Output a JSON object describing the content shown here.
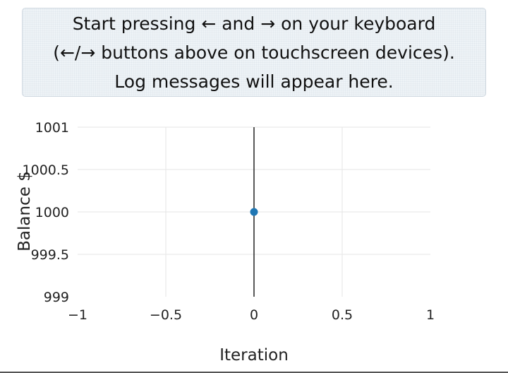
{
  "log": {
    "lines": [
      "Start pressing ← and → on your keyboard",
      "(←/→ buttons above on touchscreen devices).",
      "Log messages will appear here."
    ]
  },
  "chart_data": {
    "type": "scatter",
    "title": "",
    "xlabel": "Iteration",
    "ylabel": "Balance $",
    "xlim": [
      -1,
      1
    ],
    "ylim": [
      999,
      1001
    ],
    "x_ticks": [
      -1,
      -0.5,
      0,
      0.5,
      1
    ],
    "x_tick_labels": [
      "−1",
      "−0.5",
      "0",
      "0.5",
      "1"
    ],
    "y_ticks": [
      999,
      999.5,
      1000,
      1000.5,
      1001
    ],
    "y_tick_labels": [
      "999",
      "999.5",
      "1000",
      "1000.5",
      "1001"
    ],
    "grid": true,
    "zero_line": true,
    "series": [
      {
        "x": [
          0
        ],
        "y": [
          1000
        ],
        "color": "#1f77b4"
      }
    ],
    "colors": {
      "marker": "#1f77b4",
      "grid": "#e6e6e6",
      "zero_line": "#222222",
      "text": "#222222"
    }
  }
}
